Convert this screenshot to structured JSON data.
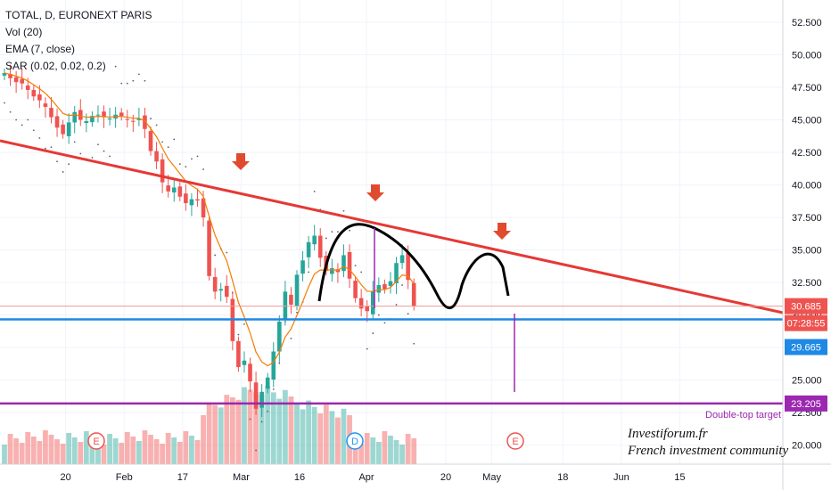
{
  "header": {
    "symbol_line": "TOTAL, D, EURONEXT PARIS",
    "vol_line": "Vol (20)",
    "ema_line": "EMA (7, close)",
    "sar_line": "SAR (0.02, 0.02, 0.2)"
  },
  "watermark": {
    "line1": "Investiforum.fr",
    "line2": "French investment community"
  },
  "price_tags": {
    "last_price": "30.685",
    "countdown": "07:28:55",
    "support": "29.665",
    "target": "23.205"
  },
  "target_label": "Double-top target",
  "event_markers": [
    {
      "label": "E",
      "date_label": "early Feb",
      "color": "#ef5350"
    },
    {
      "label": "D",
      "date_label": "early Apr",
      "color": "#2196f3"
    },
    {
      "label": "E",
      "date_label": "early May",
      "color": "#ef5350"
    }
  ],
  "colors": {
    "up": "#26a69a",
    "down": "#ef5350",
    "ema": "#f57c00",
    "trendline": "#e53935",
    "support": "#1e88e5",
    "target": "#9c27b0",
    "arrow": "#e04a2f"
  },
  "chart_data": {
    "type": "candlestick",
    "title": "TOTAL, D, EURONEXT PARIS",
    "y_ticks": [
      20,
      22.5,
      25,
      27.5,
      30,
      32.5,
      35,
      37.5,
      40,
      42.5,
      45,
      47.5,
      50,
      52.5
    ],
    "y_tick_labels": [
      "20.000",
      "22.500",
      "25.000",
      "27.500",
      "30.000",
      "32.500",
      "35.000",
      "37.500",
      "40.000",
      "42.500",
      "45.000",
      "47.500",
      "50.000",
      "52.500"
    ],
    "x_tick_labels": [
      {
        "label": "20",
        "date": "2020-01-20"
      },
      {
        "label": "Feb",
        "date": "2020-02-03"
      },
      {
        "label": "17",
        "date": "2020-02-17"
      },
      {
        "label": "Mar",
        "date": "2020-03-02"
      },
      {
        "label": "16",
        "date": "2020-03-16"
      },
      {
        "label": "Apr",
        "date": "2020-04-01"
      },
      {
        "label": "20",
        "date": "2020-04-20"
      },
      {
        "label": "May",
        "date": "2020-05-01"
      },
      {
        "label": "18",
        "date": "2020-05-18"
      },
      {
        "label": "Jun",
        "date": "2020-06-01"
      },
      {
        "label": "15",
        "date": "2020-06-15"
      }
    ],
    "closes": [
      48.6,
      48.2,
      47.9,
      47.8,
      47.3,
      46.8,
      46.5,
      46.0,
      45.2,
      44.4,
      43.9,
      44.8,
      45.6,
      45.0,
      44.9,
      45.3,
      45.4,
      45.2,
      45.1,
      45.4,
      45.3,
      45.0,
      44.9,
      45.1,
      44.3,
      42.6,
      41.8,
      40.2,
      39.5,
      39.8,
      39.1,
      38.6,
      38.9,
      38.8,
      37.5,
      33.0,
      31.8,
      32.0,
      31.4,
      28.0,
      26.0,
      26.5,
      24.9,
      22.8,
      24.1,
      25.2,
      27.2,
      29.5,
      31.8,
      30.8,
      33.1,
      34.2,
      35.6,
      36.1,
      34.4,
      33.4,
      33.6,
      33.3,
      34.6,
      32.8,
      31.3,
      30.5,
      30.3,
      31.8,
      32.3,
      32.0,
      32.6,
      34.0,
      34.6,
      32.7,
      30.7
    ],
    "support_level": 29.665,
    "target_level": 23.205,
    "last_price": 30.685,
    "annotations": [
      "Double-top target"
    ],
    "ylim": [
      18.2,
      53.6
    ]
  }
}
